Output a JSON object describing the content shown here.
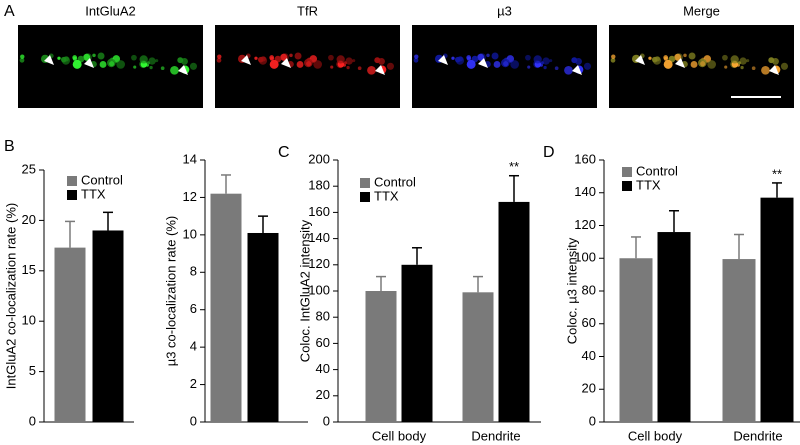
{
  "panel_labels": [
    "A",
    "B",
    "C",
    "D"
  ],
  "image_titles": [
    "IntGluA2",
    "TfR",
    "µ3",
    "Merge"
  ],
  "chart_data": [
    {
      "type": "bar",
      "ylabel": "IntGluA2  co-localization rate (%)",
      "categories": [
        null
      ],
      "series": [
        {
          "name": "Control",
          "color": "#7a7a7a",
          "values": [
            17.3
          ],
          "errors": [
            2.6
          ]
        },
        {
          "name": "TTX",
          "color": "#000000",
          "values": [
            19.0
          ],
          "errors": [
            1.8
          ]
        }
      ],
      "ylim": [
        0,
        25
      ],
      "yticks": [
        0,
        5,
        10,
        15,
        20,
        25
      ],
      "legend": "top-left"
    },
    {
      "type": "bar",
      "ylabel": "µ3 co-localization rate (%)",
      "categories": [
        null,
        null
      ],
      "values": [
        12.2,
        10.1
      ],
      "errors": [
        1.0,
        0.9
      ],
      "colors": [
        "#7a7a7a",
        "#000000"
      ],
      "ylim": [
        0,
        14
      ],
      "yticks": [
        0,
        2,
        4,
        6,
        8,
        10,
        12,
        14
      ]
    },
    {
      "type": "bar",
      "ylabel": "Coloc. IntGluA2 intensity",
      "categories": [
        "Cell body",
        "Dendrite"
      ],
      "series": [
        {
          "name": "Control",
          "color": "#7a7a7a",
          "values": [
            100,
            99
          ],
          "errors": [
            11,
            12
          ]
        },
        {
          "name": "TTX",
          "color": "#000000",
          "values": [
            120,
            168
          ],
          "errors": [
            13,
            20
          ],
          "annotations": [
            null,
            "**"
          ]
        }
      ],
      "ylim": [
        0,
        200
      ],
      "yticks": [
        0,
        20,
        40,
        60,
        80,
        100,
        120,
        140,
        160,
        180,
        200
      ],
      "legend": "top-left"
    },
    {
      "type": "bar",
      "ylabel": "Coloc. µ3  intensity",
      "categories": [
        "Cell body",
        "Dendrite"
      ],
      "series": [
        {
          "name": "Control",
          "color": "#7a7a7a",
          "values": [
            100,
            99.5
          ],
          "errors": [
            13,
            15
          ]
        },
        {
          "name": "TTX",
          "color": "#000000",
          "values": [
            116,
            137
          ],
          "errors": [
            13,
            9
          ],
          "annotations": [
            null,
            "**"
          ]
        }
      ],
      "ylim": [
        0,
        160
      ],
      "yticks": [
        0,
        20,
        40,
        60,
        80,
        100,
        120,
        140,
        160
      ],
      "legend": "top-left"
    }
  ]
}
